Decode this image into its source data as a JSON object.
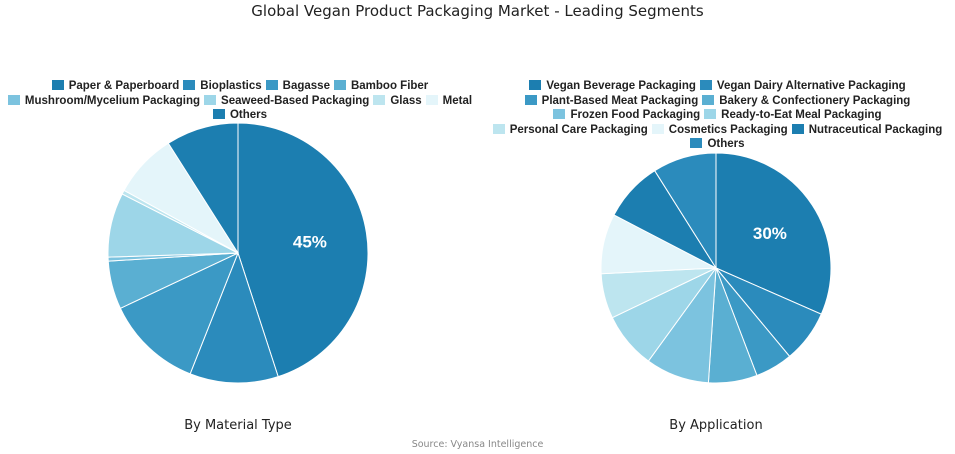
{
  "title": "Global Vegan Product Packaging Market - Leading Segments",
  "source": "Source: Vyansa Intelligence",
  "chart_data": [
    {
      "type": "pie",
      "subtitle": "By Material Type",
      "categories": [
        "Paper & Paperboard",
        "Bioplastics",
        "Bagasse",
        "Bamboo Fiber",
        "Mushroom/Mycelium Packaging",
        "Seaweed-Based Packaging",
        "Glass",
        "Metal",
        "Others"
      ],
      "values": [
        45,
        11,
        12,
        6,
        0.5,
        8,
        0.5,
        8,
        9
      ],
      "colors": [
        "#1c7eb0",
        "#2b8bbc",
        "#3b99c5",
        "#5aafd2",
        "#7cc3df",
        "#9dd6e8",
        "#bde5ef",
        "#e4f5fa",
        "#1c7eb0"
      ],
      "data_labels": [
        "45%",
        "",
        "",
        "",
        "",
        "",
        "",
        "",
        ""
      ],
      "legend_position": "top"
    },
    {
      "type": "pie",
      "subtitle": "By Application",
      "categories": [
        "Vegan Beverage Packaging",
        "Vegan Dairy Alternative Packaging",
        "Plant-Based Meat Packaging",
        "Bakery & Confectionery Packaging",
        "Frozen Food Packaging",
        "Ready-to-Eat Meal Packaging",
        "Personal Care Packaging",
        "Cosmetics Packaging",
        "Nutraceutical Packaging",
        "Others"
      ],
      "values": [
        30,
        7,
        5,
        6.5,
        8.5,
        7.5,
        6,
        8,
        8,
        8.5
      ],
      "colors": [
        "#1c7eb0",
        "#2b8bbc",
        "#3b99c5",
        "#5aafd2",
        "#7cc3df",
        "#9dd6e8",
        "#bde5ef",
        "#e4f5fa",
        "#1c7eb0",
        "#2b8bbc"
      ],
      "data_labels": [
        "30%",
        "",
        "",
        "",
        "",
        "",
        "",
        "",
        "",
        ""
      ],
      "legend_position": "top"
    }
  ]
}
